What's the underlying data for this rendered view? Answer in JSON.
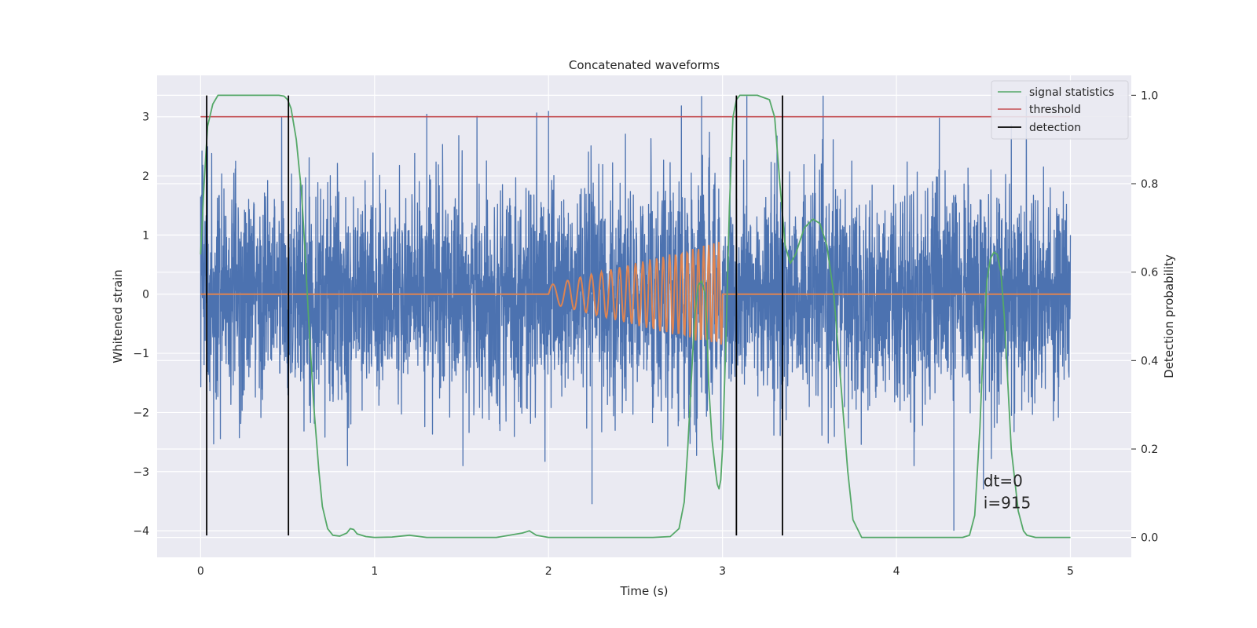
{
  "chart_data": {
    "type": "line",
    "title": "Concatenated waveforms",
    "xlabel": "Time (s)",
    "ylabel": "Whitened strain",
    "y2label": "Detection probability",
    "xlim": [
      -0.25,
      5.35
    ],
    "ylim": [
      -4.45,
      3.7
    ],
    "y2lim": [
      -0.045,
      1.045
    ],
    "xticks": [
      0,
      1,
      2,
      3,
      4,
      5
    ],
    "yticks": [
      -4,
      -3,
      -2,
      -1,
      0,
      1,
      2,
      3
    ],
    "y2ticks": [
      0.0,
      0.2,
      0.4,
      0.6,
      0.8,
      1.0
    ],
    "grid": true,
    "legend_position": "top-right",
    "legend": [
      "signal statistics",
      "threshold",
      "detection"
    ],
    "colors": {
      "strain": "#4c72b0",
      "injected": "#dd8452",
      "statistics": "#55a868",
      "threshold": "#c44e52",
      "detection": "#000000",
      "axes_bg": "#eaeaf2",
      "grid": "#ffffff"
    },
    "series": [
      {
        "role": "strain",
        "x_range": [
          0,
          5
        ],
        "envelope_min": -2.9,
        "envelope_max": 3.35,
        "spikes": [
          [
            0.02,
            -1.2
          ],
          [
            0.04,
            2.5
          ],
          [
            1.3,
            3.05
          ],
          [
            2.0,
            3.1
          ],
          [
            2.25,
            -3.55
          ],
          [
            2.88,
            3.35
          ],
          [
            3.14,
            3.35
          ],
          [
            4.33,
            -4.0
          ],
          [
            4.5,
            -3.3
          ]
        ]
      },
      {
        "role": "injected",
        "x_range": [
          0,
          5
        ],
        "chirp_start": 2.0,
        "chirp_end": 3.0,
        "amp_start": 0.15,
        "amp_end": 0.9,
        "freq_start": 10,
        "freq_end": 36
      },
      {
        "name": "signal statistics",
        "role": "statistics",
        "x": [
          0.0,
          0.02,
          0.04,
          0.07,
          0.1,
          0.15,
          0.2,
          0.3,
          0.4,
          0.45,
          0.48,
          0.5,
          0.52,
          0.55,
          0.58,
          0.6,
          0.62,
          0.65,
          0.68,
          0.7,
          0.73,
          0.76,
          0.8,
          0.84,
          0.86,
          0.88,
          0.9,
          0.95,
          1.0,
          1.1,
          1.2,
          1.3,
          1.5,
          1.7,
          1.85,
          1.89,
          1.93,
          2.0,
          2.2,
          2.4,
          2.6,
          2.7,
          2.75,
          2.78,
          2.8,
          2.82,
          2.84,
          2.86,
          2.88,
          2.9,
          2.91,
          2.92,
          2.94,
          2.96,
          2.97,
          2.98,
          2.99,
          3.0,
          3.02,
          3.04,
          3.06,
          3.08,
          3.1,
          3.15,
          3.2,
          3.27,
          3.3,
          3.33,
          3.36,
          3.39,
          3.42,
          3.47,
          3.52,
          3.56,
          3.6,
          3.64,
          3.68,
          3.72,
          3.75,
          3.8,
          3.9,
          4.1,
          4.3,
          4.38,
          4.42,
          4.45,
          4.48,
          4.5,
          4.52,
          4.54,
          4.56,
          4.58,
          4.6,
          4.62,
          4.64,
          4.66,
          4.7,
          4.73,
          4.75,
          4.8,
          5.0
        ],
        "y": [
          0.64,
          0.8,
          0.93,
          0.98,
          1.0,
          1.0,
          1.0,
          1.0,
          1.0,
          1.0,
          0.998,
          0.99,
          0.97,
          0.9,
          0.78,
          0.65,
          0.5,
          0.3,
          0.15,
          0.07,
          0.02,
          0.005,
          0.003,
          0.01,
          0.02,
          0.018,
          0.008,
          0.002,
          0.0,
          0.001,
          0.005,
          0.0,
          0.0,
          0.0,
          0.01,
          0.015,
          0.005,
          0.0,
          0.0,
          0.0,
          0.0,
          0.002,
          0.02,
          0.08,
          0.2,
          0.35,
          0.5,
          0.57,
          0.58,
          0.55,
          0.48,
          0.35,
          0.22,
          0.15,
          0.12,
          0.11,
          0.13,
          0.2,
          0.45,
          0.75,
          0.95,
          0.99,
          1.0,
          1.0,
          1.0,
          0.99,
          0.95,
          0.8,
          0.66,
          0.62,
          0.64,
          0.7,
          0.72,
          0.71,
          0.66,
          0.55,
          0.35,
          0.15,
          0.04,
          0.0,
          0.0,
          0.0,
          0.0,
          0.0,
          0.005,
          0.05,
          0.25,
          0.45,
          0.58,
          0.63,
          0.645,
          0.64,
          0.6,
          0.5,
          0.35,
          0.2,
          0.06,
          0.015,
          0.005,
          0.0,
          0.0
        ]
      },
      {
        "name": "threshold",
        "role": "threshold",
        "x": [
          0.0,
          5.0
        ],
        "y": [
          3.0,
          3.0
        ]
      },
      {
        "name": "detection",
        "role": "detection",
        "x": [
          0.035,
          0.505,
          3.08,
          3.345
        ],
        "y_range": [
          -4.08,
          3.36
        ]
      }
    ],
    "annotations": [
      {
        "text": "dt=0",
        "x": 4.5,
        "y": -3.25
      },
      {
        "text": "i=915",
        "x": 4.5,
        "y": -3.62
      }
    ]
  }
}
